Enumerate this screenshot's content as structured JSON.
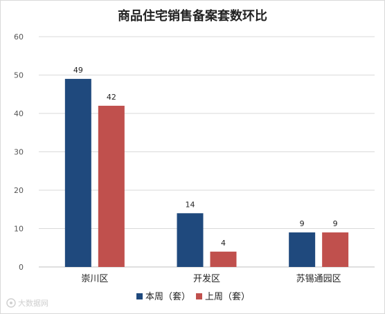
{
  "chart_data": {
    "type": "bar",
    "title": "商品住宅销售备案套数环比",
    "categories": [
      "崇川区",
      "开发区",
      "苏锡通园区"
    ],
    "series": [
      {
        "name": "本周（套）",
        "values": [
          49,
          14,
          9
        ],
        "color": "#1f497d"
      },
      {
        "name": "上周（套）",
        "values": [
          42,
          4,
          9
        ],
        "color": "#c0504d"
      }
    ],
    "ylim": [
      0,
      60
    ],
    "yticks": [
      0,
      10,
      20,
      30,
      40,
      50,
      60
    ],
    "grid": true,
    "legend": "bottom-center",
    "xlabel": "",
    "ylabel": ""
  },
  "watermark": "大数据网",
  "watermark_icon": "camera-icon"
}
